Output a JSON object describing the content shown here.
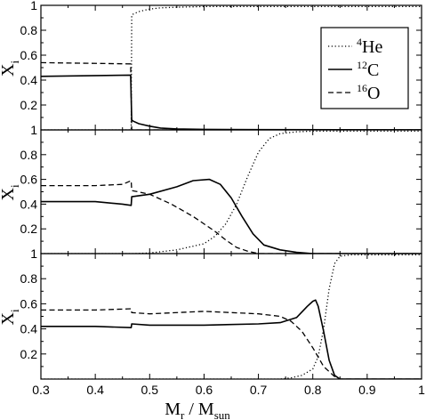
{
  "chart_data": {
    "type": "line",
    "xlabel": {
      "main": "M",
      "sub1": "r",
      "mid": " / M",
      "sub2": "sun"
    },
    "ylabel": {
      "main": "X",
      "sub": "i"
    },
    "xlim": [
      0.3,
      1.0
    ],
    "ylim": [
      0.0,
      1.0
    ],
    "x_ticks": [
      "0.3",
      "0.4",
      "0.5",
      "0.6",
      "0.7",
      "0.8",
      "0.9",
      "1"
    ],
    "y_ticks": [
      "0.2",
      "0.4",
      "0.6",
      "0.8",
      "1"
    ],
    "grid": false,
    "legend": {
      "placement": "top-right",
      "entries": [
        {
          "sup": "4",
          "base": "He",
          "dash": "dotted"
        },
        {
          "sup": "12",
          "base": "C",
          "dash": "solid"
        },
        {
          "sup": "16",
          "base": "O",
          "dash": "dashed"
        }
      ]
    },
    "panels": [
      {
        "series": [
          {
            "key": "He4",
            "dash": "dotted",
            "x": [
              0.3,
              0.466,
              0.467,
              0.47,
              0.48,
              0.5,
              0.52,
              0.55,
              0.6,
              0.7,
              1.0
            ],
            "y": [
              0.0,
              0.0,
              0.92,
              0.93,
              0.95,
              0.97,
              0.98,
              0.985,
              0.99,
              0.99,
              0.99
            ]
          },
          {
            "key": "C12",
            "dash": "solid",
            "x": [
              0.3,
              0.465,
              0.467,
              0.47,
              0.48,
              0.5,
              0.52,
              0.55,
              0.6,
              0.7,
              1.0
            ],
            "y": [
              0.43,
              0.44,
              0.08,
              0.07,
              0.05,
              0.03,
              0.015,
              0.008,
              0.004,
              0.002,
              0.001
            ]
          },
          {
            "key": "O16",
            "dash": "dashed",
            "x": [
              0.3,
              0.465,
              0.467,
              0.48,
              0.5,
              0.55,
              1.0
            ],
            "y": [
              0.54,
              0.53,
              0.0,
              0.0,
              0.0,
              0.0,
              0.0
            ]
          }
        ]
      },
      {
        "series": [
          {
            "key": "He4",
            "dash": "dotted",
            "x": [
              0.3,
              0.47,
              0.5,
              0.55,
              0.6,
              0.62,
              0.64,
              0.66,
              0.68,
              0.7,
              0.72,
              0.74,
              0.77,
              0.8,
              1.0
            ],
            "y": [
              0.0,
              0.0,
              0.005,
              0.03,
              0.08,
              0.14,
              0.24,
              0.4,
              0.62,
              0.82,
              0.93,
              0.97,
              0.985,
              0.99,
              0.99
            ]
          },
          {
            "key": "C12",
            "dash": "solid",
            "x": [
              0.3,
              0.4,
              0.45,
              0.466,
              0.467,
              0.5,
              0.55,
              0.58,
              0.61,
              0.63,
              0.65,
              0.67,
              0.69,
              0.71,
              0.74,
              0.77,
              0.8,
              1.0
            ],
            "y": [
              0.42,
              0.42,
              0.4,
              0.39,
              0.46,
              0.48,
              0.54,
              0.59,
              0.6,
              0.56,
              0.45,
              0.3,
              0.16,
              0.07,
              0.03,
              0.01,
              0.0,
              0.0
            ]
          },
          {
            "key": "O16",
            "dash": "dashed",
            "x": [
              0.3,
              0.4,
              0.45,
              0.466,
              0.467,
              0.5,
              0.54,
              0.58,
              0.6,
              0.62,
              0.64,
              0.66,
              0.68,
              0.7,
              0.72,
              1.0
            ],
            "y": [
              0.55,
              0.55,
              0.56,
              0.59,
              0.51,
              0.48,
              0.4,
              0.3,
              0.24,
              0.18,
              0.11,
              0.05,
              0.02,
              0.0,
              0.0,
              0.0
            ]
          }
        ]
      },
      {
        "series": [
          {
            "key": "He4",
            "dash": "dotted",
            "x": [
              0.3,
              0.74,
              0.76,
              0.78,
              0.8,
              0.81,
              0.82,
              0.83,
              0.84,
              0.85,
              0.87,
              1.0
            ],
            "y": [
              0.0,
              0.0,
              0.01,
              0.03,
              0.08,
              0.18,
              0.4,
              0.72,
              0.92,
              0.98,
              0.99,
              0.99
            ]
          },
          {
            "key": "C12",
            "dash": "solid",
            "x": [
              0.3,
              0.4,
              0.466,
              0.467,
              0.5,
              0.6,
              0.7,
              0.74,
              0.77,
              0.79,
              0.8,
              0.805,
              0.81,
              0.82,
              0.83,
              0.84,
              0.85,
              1.0
            ],
            "y": [
              0.42,
              0.42,
              0.41,
              0.44,
              0.43,
              0.43,
              0.44,
              0.45,
              0.49,
              0.58,
              0.62,
              0.63,
              0.58,
              0.38,
              0.15,
              0.03,
              0.0,
              0.0
            ]
          },
          {
            "key": "O16",
            "dash": "dashed",
            "x": [
              0.3,
              0.4,
              0.466,
              0.467,
              0.5,
              0.6,
              0.7,
              0.74,
              0.76,
              0.78,
              0.8,
              0.82,
              0.84,
              0.85,
              1.0
            ],
            "y": [
              0.55,
              0.55,
              0.56,
              0.53,
              0.52,
              0.54,
              0.52,
              0.5,
              0.46,
              0.38,
              0.25,
              0.1,
              0.02,
              0.0,
              0.0
            ]
          }
        ]
      }
    ]
  }
}
